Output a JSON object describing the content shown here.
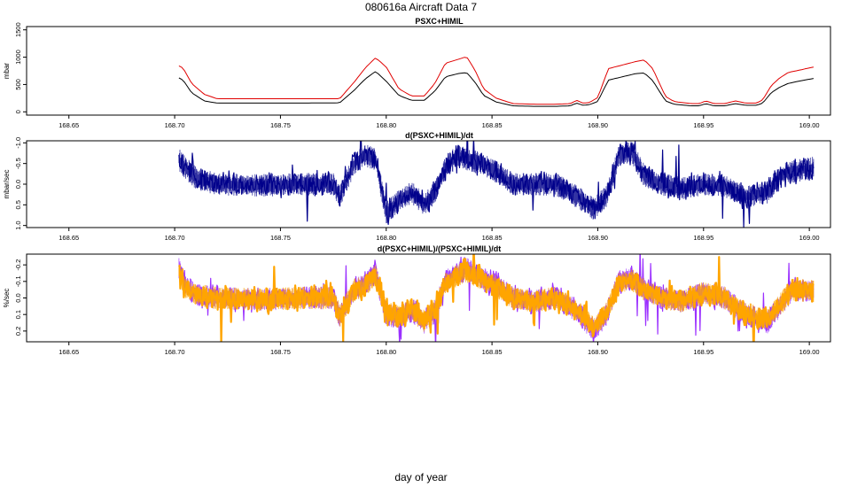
{
  "figure": {
    "title": "080616a   Aircraft Data 7",
    "xlabel": "day of year"
  },
  "chart_data": [
    {
      "type": "line",
      "title": "PSXC+HIMIL",
      "ylabel": "mbar",
      "xlim": [
        168.63,
        169.01
      ],
      "ylim": [
        -60,
        1560
      ],
      "y_inverted": false,
      "x_ticks": [
        168.65,
        168.7,
        168.75,
        168.8,
        168.85,
        168.9,
        168.95,
        169.0
      ],
      "x_tick_labels": [
        "168.65",
        "168.70",
        "168.75",
        "168.80",
        "168.85",
        "168.90",
        "168.95",
        "169.00"
      ],
      "y_ticks": [
        0,
        500,
        1000,
        1500
      ],
      "y_tick_labels": [
        "0",
        "500",
        "1000",
        "1500"
      ],
      "series": [
        {
          "color": "#e00000",
          "x": [
            168.702,
            168.704,
            168.708,
            168.714,
            168.72,
            168.74,
            168.76,
            168.778,
            168.785,
            168.79,
            168.795,
            168.8,
            168.806,
            168.812,
            168.818,
            168.823,
            168.828,
            168.834,
            168.838,
            168.842,
            168.846,
            168.852,
            168.86,
            168.87,
            168.88,
            168.887,
            168.89,
            168.893,
            168.896,
            168.9,
            168.905,
            168.918,
            168.922,
            168.926,
            168.932,
            168.936,
            168.944,
            168.948,
            168.951,
            168.955,
            168.96,
            168.965,
            168.97,
            168.975,
            168.978,
            168.982,
            168.986,
            168.99,
            168.995,
            169.002
          ],
          "y": [
            840,
            800,
            520,
            320,
            240,
            240,
            240,
            240,
            550,
            800,
            990,
            820,
            420,
            290,
            290,
            520,
            890,
            960,
            1010,
            760,
            420,
            250,
            150,
            140,
            140,
            150,
            210,
            160,
            170,
            260,
            790,
            920,
            950,
            790,
            280,
            190,
            150,
            150,
            200,
            150,
            150,
            200,
            160,
            160,
            220,
            480,
            620,
            720,
            760,
            820
          ]
        },
        {
          "color": "#000000",
          "x": [
            168.702,
            168.704,
            168.708,
            168.714,
            168.72,
            168.74,
            168.76,
            168.778,
            168.785,
            168.79,
            168.795,
            168.8,
            168.806,
            168.812,
            168.818,
            168.823,
            168.828,
            168.834,
            168.838,
            168.842,
            168.846,
            168.852,
            168.86,
            168.87,
            168.88,
            168.887,
            168.89,
            168.893,
            168.896,
            168.9,
            168.905,
            168.918,
            168.922,
            168.926,
            168.932,
            168.936,
            168.944,
            168.948,
            168.951,
            168.955,
            168.96,
            168.965,
            168.97,
            168.975,
            168.978,
            168.982,
            168.986,
            168.99,
            168.995,
            169.002
          ],
          "y": [
            620,
            580,
            350,
            200,
            160,
            160,
            160,
            165,
            400,
            600,
            740,
            560,
            300,
            210,
            210,
            380,
            640,
            700,
            720,
            540,
            300,
            180,
            110,
            100,
            100,
            110,
            160,
            120,
            130,
            190,
            580,
            700,
            710,
            570,
            200,
            140,
            110,
            110,
            150,
            110,
            110,
            150,
            120,
            120,
            160,
            350,
            450,
            520,
            560,
            610
          ]
        }
      ]
    },
    {
      "type": "line",
      "title": "d(PSXC+HIMIL)/dt",
      "ylabel": "mbar/sec",
      "xlim": [
        168.63,
        169.01
      ],
      "ylim": [
        -1.05,
        1.05
      ],
      "y_inverted": true,
      "x_ticks": [
        168.65,
        168.7,
        168.75,
        168.8,
        168.85,
        168.9,
        168.95,
        169.0
      ],
      "x_tick_labels": [
        "168.65",
        "168.70",
        "168.75",
        "168.80",
        "168.85",
        "168.90",
        "168.95",
        "169.00"
      ],
      "y_ticks": [
        -1.0,
        -0.5,
        0.0,
        0.5,
        1.0
      ],
      "y_tick_labels": [
        "-1.0",
        "-0.5",
        "0.0",
        "0.5",
        "1.0"
      ],
      "series": [
        {
          "color": "#00008b",
          "x": [
            168.702,
            168.705,
            168.71,
            168.72,
            168.74,
            168.76,
            168.775,
            168.778,
            168.785,
            168.79,
            168.795,
            168.8,
            168.806,
            168.812,
            168.818,
            168.823,
            168.828,
            168.834,
            168.838,
            168.845,
            168.852,
            168.86,
            168.87,
            168.88,
            168.887,
            168.893,
            168.898,
            168.904,
            168.91,
            168.916,
            168.922,
            168.93,
            168.94,
            168.95,
            168.96,
            168.97,
            168.98,
            168.986,
            168.992,
            169.002
          ],
          "y": [
            -0.6,
            -0.4,
            -0.15,
            0.0,
            0.03,
            0.0,
            0.0,
            0.3,
            -0.5,
            -0.7,
            -0.6,
            0.7,
            0.4,
            0.2,
            0.5,
            0.2,
            -0.4,
            -0.7,
            -0.6,
            -0.5,
            -0.3,
            0.0,
            0.0,
            0.0,
            0.2,
            0.4,
            0.6,
            0.3,
            -0.7,
            -0.8,
            -0.2,
            0.0,
            0.1,
            0.0,
            0.05,
            0.3,
            0.2,
            -0.2,
            -0.3,
            -0.4
          ]
        }
      ]
    },
    {
      "type": "line",
      "title": "d(PSXC+HIMIL)/(PSXC+HIMIL)/dt",
      "ylabel": "%/sec",
      "xlim": [
        168.63,
        169.01
      ],
      "ylim": [
        -0.265,
        0.265
      ],
      "y_inverted": true,
      "x_ticks": [
        168.65,
        168.7,
        168.75,
        168.8,
        168.85,
        168.9,
        168.95,
        169.0
      ],
      "x_tick_labels": [
        "168.65",
        "168.70",
        "168.75",
        "168.80",
        "168.85",
        "168.90",
        "168.95",
        "169.00"
      ],
      "y_ticks": [
        -0.2,
        -0.1,
        0.0,
        0.1,
        0.2
      ],
      "y_tick_labels": [
        "-0.2",
        "-0.1",
        "0.0",
        "0.1",
        "0.2"
      ],
      "series": [
        {
          "color": "#9b30ff",
          "x": [
            168.702,
            168.705,
            168.71,
            168.72,
            168.74,
            168.76,
            168.775,
            168.778,
            168.785,
            168.79,
            168.795,
            168.8,
            168.806,
            168.812,
            168.818,
            168.823,
            168.828,
            168.834,
            168.838,
            168.845,
            168.852,
            168.86,
            168.87,
            168.88,
            168.887,
            168.893,
            168.898,
            168.904,
            168.91,
            168.916,
            168.922,
            168.93,
            168.94,
            168.95,
            168.96,
            168.97,
            168.98,
            168.986,
            168.992,
            169.002
          ],
          "y": [
            -0.18,
            -0.08,
            -0.02,
            0.0,
            0.01,
            0.0,
            0.0,
            0.12,
            -0.05,
            -0.08,
            -0.15,
            0.1,
            0.12,
            0.08,
            0.15,
            0.08,
            -0.1,
            -0.15,
            -0.18,
            -0.12,
            -0.08,
            0.0,
            0.02,
            0.0,
            0.05,
            0.12,
            0.2,
            0.1,
            -0.1,
            -0.12,
            -0.05,
            0.0,
            0.02,
            -0.03,
            0.0,
            0.1,
            0.15,
            0.05,
            -0.05,
            -0.04
          ]
        },
        {
          "color": "#ffa500",
          "x": [
            168.702,
            168.705,
            168.71,
            168.72,
            168.74,
            168.76,
            168.775,
            168.778,
            168.785,
            168.79,
            168.795,
            168.8,
            168.806,
            168.812,
            168.818,
            168.823,
            168.828,
            168.834,
            168.838,
            168.845,
            168.852,
            168.86,
            168.87,
            168.88,
            168.887,
            168.893,
            168.898,
            168.904,
            168.91,
            168.916,
            168.922,
            168.93,
            168.94,
            168.95,
            168.96,
            168.97,
            168.98,
            168.986,
            168.992,
            169.002
          ],
          "y": [
            -0.16,
            -0.06,
            -0.02,
            0.0,
            0.01,
            0.0,
            0.0,
            0.11,
            -0.05,
            -0.07,
            -0.14,
            0.09,
            0.11,
            0.07,
            0.14,
            0.07,
            -0.09,
            -0.14,
            -0.16,
            -0.11,
            -0.07,
            0.0,
            0.02,
            0.0,
            0.05,
            0.11,
            0.18,
            0.09,
            -0.09,
            -0.11,
            -0.05,
            0.0,
            0.02,
            -0.03,
            0.0,
            0.09,
            0.13,
            0.04,
            -0.05,
            -0.04
          ]
        }
      ]
    }
  ]
}
